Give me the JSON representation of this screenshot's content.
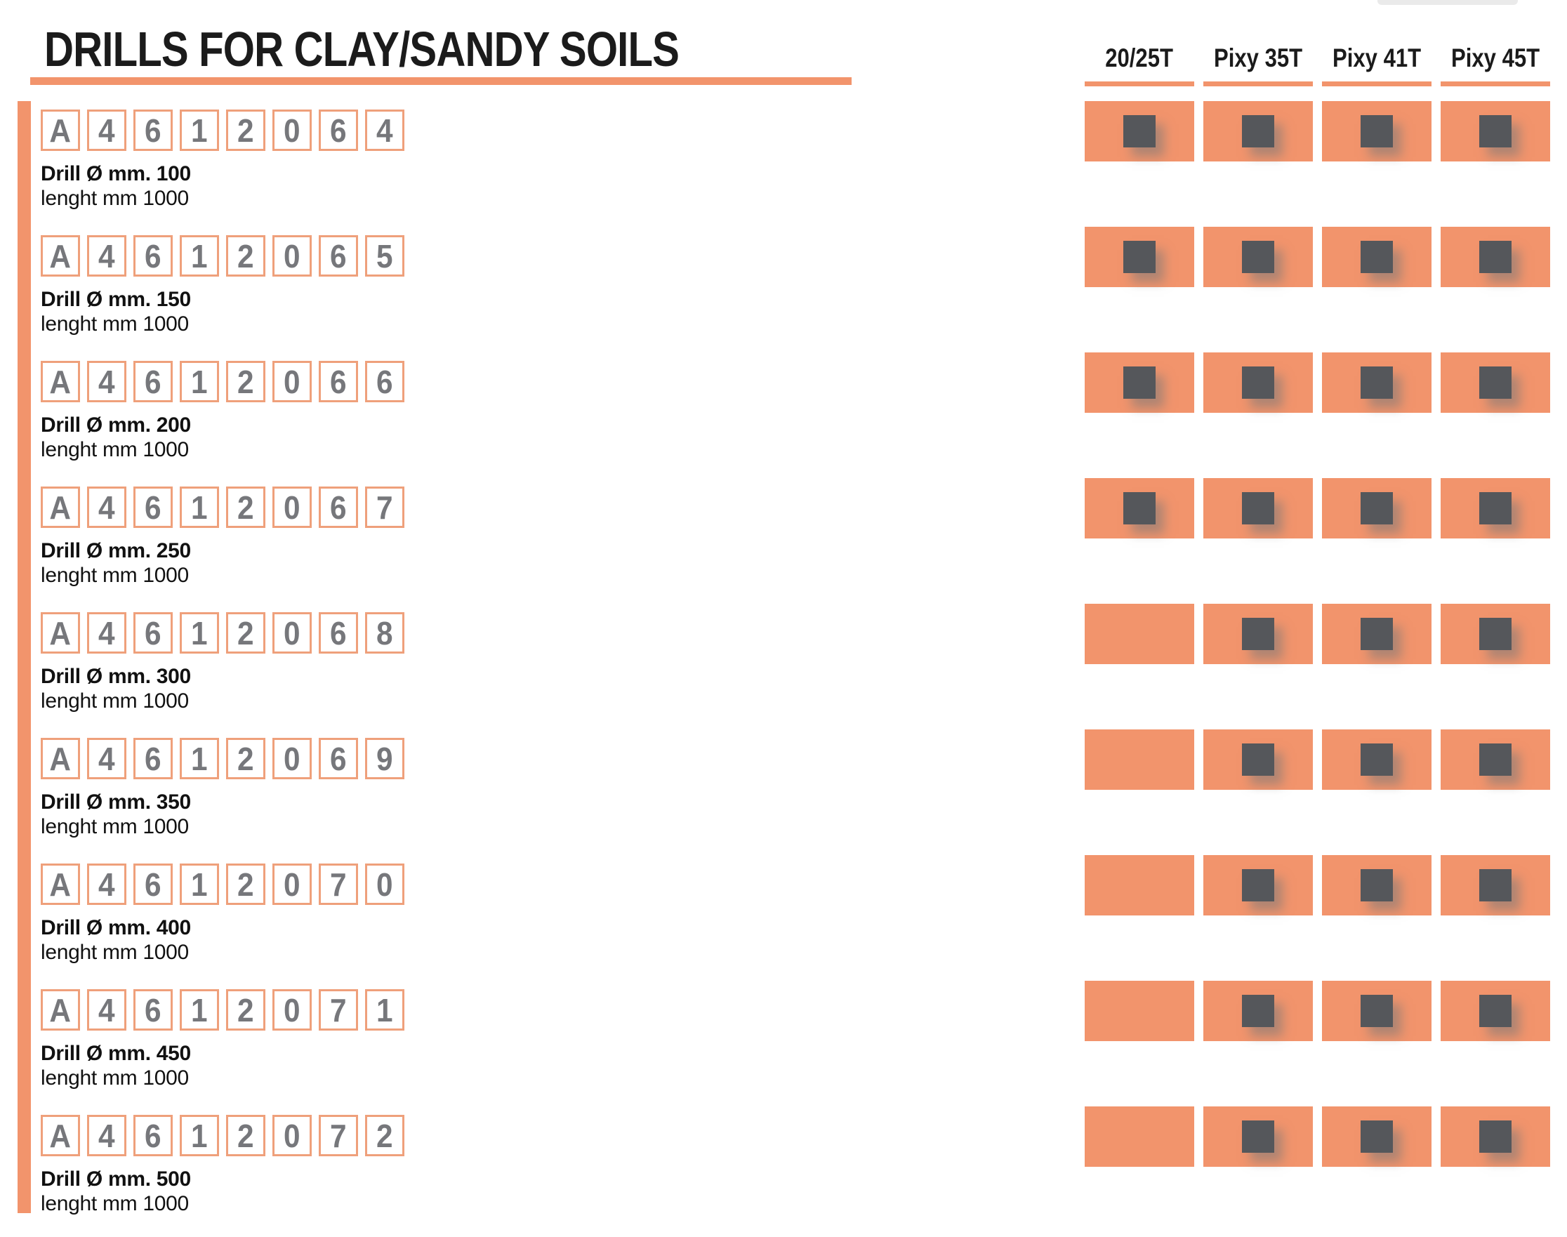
{
  "title": "DRILLS FOR CLAY/SANDY SOILS",
  "columns": [
    "20/25T",
    "Pixy 35T",
    "Pixy 41T",
    "Pixy 45T"
  ],
  "rows": [
    {
      "code": [
        "A",
        "4",
        "6",
        "1",
        "2",
        "0",
        "6",
        "4"
      ],
      "name": "Drill Ø mm. 100",
      "length": "lenght mm 1000",
      "compat": [
        true,
        true,
        true,
        true
      ]
    },
    {
      "code": [
        "A",
        "4",
        "6",
        "1",
        "2",
        "0",
        "6",
        "5"
      ],
      "name": "Drill Ø mm. 150",
      "length": "lenght mm 1000",
      "compat": [
        true,
        true,
        true,
        true
      ]
    },
    {
      "code": [
        "A",
        "4",
        "6",
        "1",
        "2",
        "0",
        "6",
        "6"
      ],
      "name": "Drill Ø mm. 200",
      "length": "lenght mm 1000",
      "compat": [
        true,
        true,
        true,
        true
      ]
    },
    {
      "code": [
        "A",
        "4",
        "6",
        "1",
        "2",
        "0",
        "6",
        "7"
      ],
      "name": "Drill Ø mm. 250",
      "length": "lenght mm 1000",
      "compat": [
        true,
        true,
        true,
        true
      ]
    },
    {
      "code": [
        "A",
        "4",
        "6",
        "1",
        "2",
        "0",
        "6",
        "8"
      ],
      "name": "Drill Ø mm. 300",
      "length": "lenght mm 1000",
      "compat": [
        false,
        true,
        true,
        true
      ]
    },
    {
      "code": [
        "A",
        "4",
        "6",
        "1",
        "2",
        "0",
        "6",
        "9"
      ],
      "name": "Drill Ø mm. 350",
      "length": "lenght mm 1000",
      "compat": [
        false,
        true,
        true,
        true
      ]
    },
    {
      "code": [
        "A",
        "4",
        "6",
        "1",
        "2",
        "0",
        "7",
        "0"
      ],
      "name": "Drill Ø mm. 400",
      "length": "lenght mm 1000",
      "compat": [
        false,
        true,
        true,
        true
      ]
    },
    {
      "code": [
        "A",
        "4",
        "6",
        "1",
        "2",
        "0",
        "7",
        "1"
      ],
      "name": "Drill Ø mm. 450",
      "length": "lenght mm 1000",
      "compat": [
        false,
        true,
        true,
        true
      ]
    },
    {
      "code": [
        "A",
        "4",
        "6",
        "1",
        "2",
        "0",
        "7",
        "2"
      ],
      "name": "Drill Ø mm. 500",
      "length": "lenght mm 1000",
      "compat": [
        false,
        true,
        true,
        true
      ]
    }
  ],
  "colors": {
    "accent_orange": "#F2946C",
    "code_box_border": "#EFA07B",
    "check_square": "#55575B",
    "code_digit_gray": "#76777B",
    "text_black": "#1B1B1B"
  }
}
